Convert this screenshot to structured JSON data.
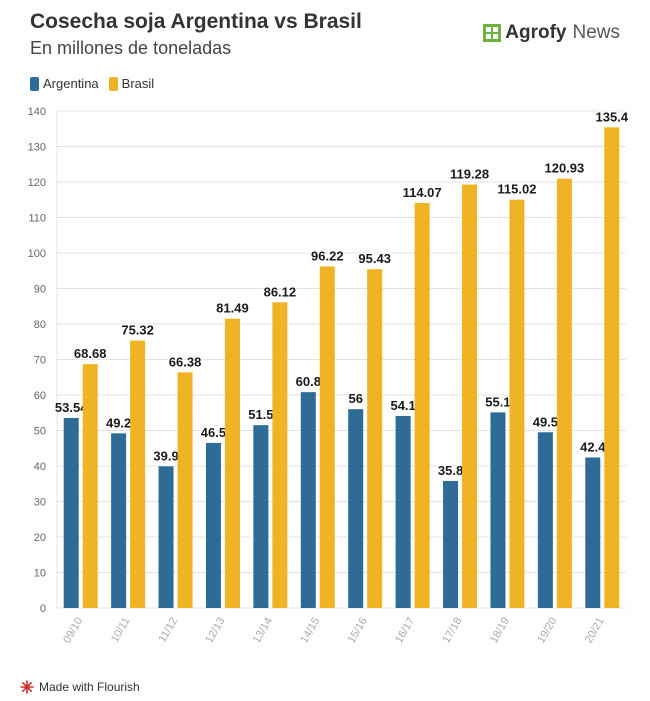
{
  "header": {
    "title": "Cosecha soja Argentina vs Brasil",
    "subtitle": "En millones de toneladas",
    "brand_bold": "Agrofy",
    "brand_light": "News"
  },
  "footer": {
    "credit": "Made with Flourish"
  },
  "colors": {
    "argentina": "#2e6b96",
    "brasil": "#f0b323",
    "grid": "#e3e3e3",
    "tick": "#666666",
    "xtick": "#aaaaaa",
    "label": "#1a1a1a"
  },
  "chart_data": {
    "type": "bar",
    "categories": [
      "09/10",
      "10/11",
      "11/12",
      "12/13",
      "13/14",
      "14/15",
      "15/16",
      "16/17",
      "17/18",
      "18/19",
      "19/20",
      "20/21"
    ],
    "series": [
      {
        "name": "Argentina",
        "values": [
          53.54,
          49.2,
          39.9,
          46.5,
          51.5,
          60.8,
          56,
          54.1,
          35.8,
          55.1,
          49.5,
          42.4
        ],
        "labels": [
          "53.54",
          "49.2",
          "39.9",
          "46.5",
          "51.5",
          "60.8",
          "56",
          "54.1",
          "35.8",
          "55.1",
          "49.5",
          "42.4"
        ]
      },
      {
        "name": "Brasil",
        "values": [
          68.68,
          75.32,
          66.38,
          81.49,
          86.12,
          96.22,
          95.43,
          114.07,
          119.28,
          115.02,
          120.93,
          135.4
        ],
        "labels": [
          "68.68",
          "75.32",
          "66.38",
          "81.49",
          "86.12",
          "96.22",
          "95.43",
          "114.07",
          "119.28",
          "115.02",
          "120.93",
          "135.4"
        ]
      }
    ],
    "yticks": [
      "0",
      "10",
      "20",
      "30",
      "40",
      "50",
      "60",
      "70",
      "80",
      "90",
      "100",
      "110",
      "120",
      "130",
      "140"
    ],
    "ylim": [
      0,
      140
    ],
    "grid": true,
    "legend": "top-left"
  }
}
